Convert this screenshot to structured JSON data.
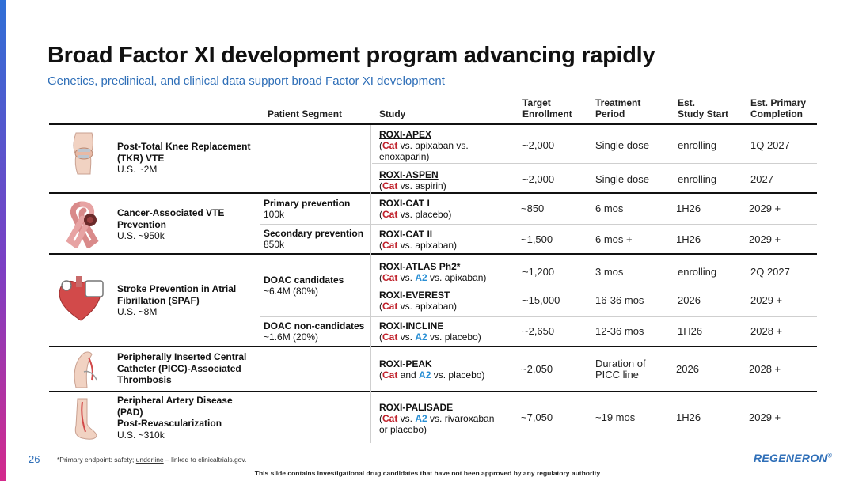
{
  "header": {
    "title": "Broad Factor XI development program advancing rapidly",
    "subtitle": "Genetics, preclinical, and clinical data support broad Factor XI development"
  },
  "columns": {
    "segment": "Patient Segment",
    "study": "Study",
    "enrollment": [
      "Target",
      "Enrollment"
    ],
    "treatment": [
      "Treatment",
      "Period"
    ],
    "start": [
      "Est.",
      "Study Start"
    ],
    "completion": [
      "Est. Primary",
      "Completion"
    ]
  },
  "indications": [
    {
      "icon": "knee-icon",
      "name": [
        "Post-Total Knee Replacement",
        "(TKR) VTE"
      ],
      "population": "U.S. ~2M"
    },
    {
      "icon": "ribbon-icon",
      "name": [
        "Cancer-Associated VTE",
        "Prevention"
      ],
      "population": "U.S. ~950k"
    },
    {
      "icon": "heart-icon",
      "name": [
        "Stroke Prevention in Atrial",
        "Fibrillation (SPAF)"
      ],
      "population": "U.S. ~8M"
    },
    {
      "icon": "arm-icon",
      "name": [
        "Peripherally Inserted Central",
        "Catheter (PICC)-Associated",
        "Thrombosis"
      ],
      "population": ""
    },
    {
      "icon": "foot-icon",
      "name": [
        "Peripheral Artery Disease",
        "(PAD)",
        "Post-Revascularization"
      ],
      "population": "U.S. ~310k"
    }
  ],
  "segments": [
    {
      "label": "Primary prevention",
      "value": "100k"
    },
    {
      "label": "Secondary prevention",
      "value": "850k"
    },
    {
      "label": "DOAC candidates",
      "value": "~6.4M (80%)"
    },
    {
      "label": "DOAC non-candidates",
      "value": "~1.6M (20%)"
    }
  ],
  "studies": [
    {
      "name": "ROXI-APEX",
      "cat": "Cat",
      "pre": "(",
      "mid": " vs. apixaban vs.",
      "a2": "",
      "post": "",
      "line2": "enoxaparin)",
      "enrollment": "~2,000",
      "treatment": [
        "Single dose"
      ],
      "start": "enrolling",
      "completion": "1Q 2027"
    },
    {
      "name": "ROXI-ASPEN",
      "cat": "Cat",
      "pre": "(",
      "mid": " vs. aspirin)",
      "a2": "",
      "post": "",
      "line2": "",
      "enrollment": "~2,000",
      "treatment": [
        "Single dose"
      ],
      "start": "enrolling",
      "completion": "2027"
    },
    {
      "name": "ROXI-CAT I",
      "cat": "Cat",
      "pre": "(",
      "mid": " vs. placebo)",
      "a2": "",
      "post": "",
      "line2": "",
      "enrollment": "~850",
      "treatment": [
        "6 mos"
      ],
      "start": "1H26",
      "completion": "2029 +"
    },
    {
      "name": "ROXI-CAT II",
      "cat": "Cat",
      "pre": "(",
      "mid": " vs. apixaban)",
      "a2": "",
      "post": "",
      "line2": "",
      "enrollment": "~1,500",
      "treatment": [
        "6 mos +"
      ],
      "start": "1H26",
      "completion": "2029 +"
    },
    {
      "name": "ROXI-ATLAS Ph2*",
      "cat": "Cat",
      "pre": "(",
      "mid": " vs. ",
      "a2": "A2",
      "post": " vs. apixaban)",
      "line2": "",
      "enrollment": "~1,200",
      "treatment": [
        "3 mos"
      ],
      "start": "enrolling",
      "completion": "2Q 2027"
    },
    {
      "name": "ROXI-EVEREST",
      "cat": "Cat",
      "pre": "(",
      "mid": " vs. apixaban)",
      "a2": "",
      "post": "",
      "line2": "",
      "enrollment": "~15,000",
      "treatment": [
        "16-36 mos"
      ],
      "start": "2026",
      "completion": "2029 +"
    },
    {
      "name": "ROXI-INCLINE",
      "cat": "Cat",
      "pre": "(",
      "mid": " vs. ",
      "a2": "A2",
      "post": " vs. placebo)",
      "line2": "",
      "enrollment": "~2,650",
      "treatment": [
        "12-36 mos"
      ],
      "start": "1H26",
      "completion": "2028 +"
    },
    {
      "name": "ROXI-PEAK",
      "cat": "Cat",
      "pre": "(",
      "mid": " and ",
      "a2": "A2",
      "post": " vs. placebo)",
      "line2": "",
      "enrollment": "~2,050",
      "treatment": [
        "Duration of",
        "PICC line"
      ],
      "start": "2026",
      "completion": "2028 +"
    },
    {
      "name": "ROXI-PALISADE",
      "cat": "Cat",
      "pre": "(",
      "mid": " vs. ",
      "a2": "A2",
      "post": " vs. rivaroxaban",
      "line2": "or placebo)",
      "enrollment": "~7,050",
      "treatment": [
        "~19 mos"
      ],
      "start": "1H26",
      "completion": "2029 +"
    }
  ],
  "footer": {
    "page_number": "26",
    "footnote_a": "*Primary endpoint: safety; ",
    "footnote_b": "underline",
    "footnote_c": " – linked to clinicaltrials.gov.",
    "disclaimer": "This slide contains investigational drug candidates that have not been approved by any regulatory authority",
    "logo": "REGENERON"
  },
  "colors": {
    "accent": "#2f6fb8",
    "cat": "#c0202a",
    "a2": "#2a8fd4"
  }
}
